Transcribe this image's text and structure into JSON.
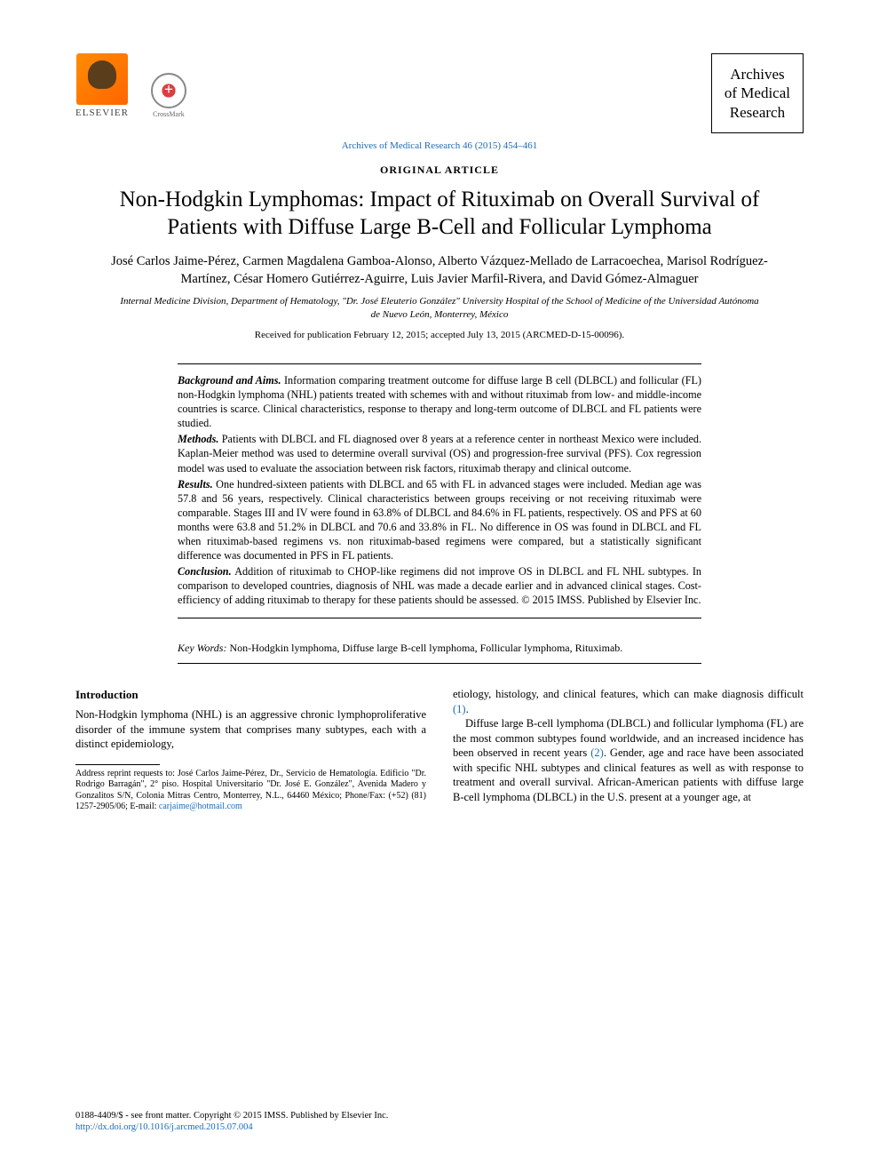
{
  "publisher": {
    "name": "ELSEVIER",
    "crossmark": "CrossMark"
  },
  "journal": {
    "name_line1": "Archives",
    "name_line2": "of Medical",
    "name_line3": "Research",
    "citation": "Archives of Medical Research 46 (2015) 454–461"
  },
  "article": {
    "type": "ORIGINAL ARTICLE",
    "title": "Non-Hodgkin Lymphomas: Impact of Rituximab on Overall Survival of Patients with Diffuse Large B-Cell and Follicular Lymphoma",
    "authors": "José Carlos Jaime-Pérez, Carmen Magdalena Gamboa-Alonso, Alberto Vázquez-Mellado de Larracoechea, Marisol Rodríguez-Martínez, César Homero Gutiérrez-Aguirre, Luis Javier Marfil-Rivera, and David Gómez-Almaguer",
    "affiliation": "Internal Medicine Division, Department of Hematology, \"Dr. José Eleuterio González\" University Hospital of the School of Medicine of the Universidad Autónoma de Nuevo León, Monterrey, México",
    "received": "Received for publication February 12, 2015; accepted July 13, 2015 (ARCMED-D-15-00096)."
  },
  "abstract": {
    "background_label": "Background and Aims.",
    "background": "Information comparing treatment outcome for diffuse large B cell (DLBCL) and follicular (FL) non-Hodgkin lymphoma (NHL) patients treated with schemes with and without rituximab from low- and middle-income countries is scarce. Clinical characteristics, response to therapy and long-term outcome of DLBCL and FL patients were studied.",
    "methods_label": "Methods.",
    "methods": "Patients with DLBCL and FL diagnosed over 8 years at a reference center in northeast Mexico were included. Kaplan-Meier method was used to determine overall survival (OS) and progression-free survival (PFS). Cox regression model was used to evaluate the association between risk factors, rituximab therapy and clinical outcome.",
    "results_label": "Results.",
    "results": "One hundred-sixteen patients with DLBCL and 65 with FL in advanced stages were included. Median age was 57.8 and 56 years, respectively. Clinical characteristics between groups receiving or not receiving rituximab were comparable. Stages III and IV were found in 63.8% of DLBCL and 84.6% in FL patients, respectively. OS and PFS at 60 months were 63.8 and 51.2% in DLBCL and 70.6 and 33.8% in FL. No difference in OS was found in DLBCL and FL when rituximab-based regimens vs. non rituximab-based regimens were compared, but a statistically significant difference was documented in PFS in FL patients.",
    "conclusion_label": "Conclusion.",
    "conclusion": "Addition of rituximab to CHOP-like regimens did not improve OS in DLBCL and FL NHL subtypes. In comparison to developed countries, diagnosis of NHL was made a decade earlier and in advanced clinical stages. Cost-efficiency of adding rituximab to therapy for these patients should be assessed.   © 2015 IMSS. Published by Elsevier Inc."
  },
  "keywords": {
    "label": "Key Words:",
    "text": "Non-Hodgkin lymphoma, Diffuse large B-cell lymphoma, Follicular lymphoma, Rituximab."
  },
  "body": {
    "intro_heading": "Introduction",
    "col1_p1": "Non-Hodgkin lymphoma (NHL) is an aggressive chronic lymphoproliferative disorder of the immune system that comprises many subtypes, each with a distinct epidemiology,",
    "col2_p1_a": "etiology, histology, and clinical features, which can make diagnosis difficult ",
    "col2_p1_ref": "(1)",
    "col2_p1_b": ".",
    "col2_p2_a": "Diffuse large B-cell lymphoma (DLBCL) and follicular lymphoma (FL) are the most common subtypes found worldwide, and an increased incidence has been observed in recent years ",
    "col2_p2_ref": "(2)",
    "col2_p2_b": ". Gender, age and race have been associated with specific NHL subtypes and clinical features as well as with response to treatment and overall survival. African-American patients with diffuse large B-cell lymphoma (DLBCL) in the U.S. present at a younger age, at"
  },
  "footnote": {
    "text_a": "Address reprint requests to: José Carlos Jaime-Pérez, Dr., Servicio de Hematología. Edificio \"Dr. Rodrigo Barragán\", 2° piso. Hospital Universitario \"Dr. José E. González\", Avenida Madero y Gonzalitos S/N, Colonia Mitras Centro, Monterrey, N.L., 64460 México; Phone/Fax: (+52) (81) 1257-2905/06; E-mail: ",
    "email": "carjaime@hotmail.com"
  },
  "footer": {
    "copyright": "0188-4409/$ - see front matter. Copyright © 2015 IMSS. Published by Elsevier Inc.",
    "doi": "http://dx.doi.org/10.1016/j.arcmed.2015.07.004"
  },
  "colors": {
    "link": "#1a6bb8",
    "text": "#000000",
    "background": "#ffffff"
  }
}
